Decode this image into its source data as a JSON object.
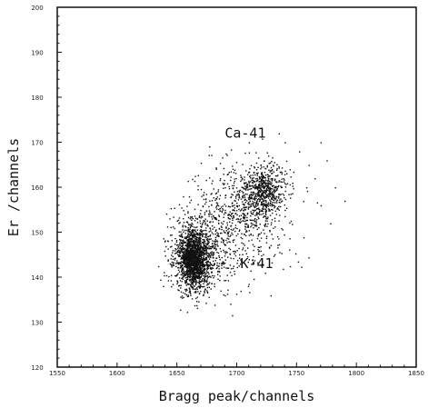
{
  "chart_data": {
    "type": "scatter",
    "title": "",
    "xlabel": "Bragg peak/channels",
    "ylabel": "Er /channels",
    "xlim": [
      1550,
      1850
    ],
    "ylim": [
      120,
      200
    ],
    "x_ticks": [
      "1550",
      "1600",
      "1650",
      "1700",
      "1750",
      "1800",
      "1850"
    ],
    "y_ticks": [
      "120",
      "130",
      "140",
      "150",
      "160",
      "170",
      "180",
      "190",
      "200"
    ],
    "x_tick_values": [
      1550,
      1600,
      1650,
      1700,
      1750,
      1800,
      1850
    ],
    "y_tick_values": [
      120,
      130,
      140,
      150,
      160,
      170,
      180,
      190,
      200
    ],
    "grid": false,
    "annotations": [
      {
        "text": "Ca-41",
        "x": 1690,
        "y": 171
      },
      {
        "text": "K-41",
        "x": 1703,
        "y": 142
      }
    ],
    "series": [
      {
        "clusters": [
          {
            "label": "K-41",
            "center": [
              1663,
              144
            ],
            "spread": [
              6,
              3
            ],
            "count": 1400
          },
          {
            "label": "K-41",
            "center": [
              1668,
              145
            ],
            "spread": [
              12,
              4.5
            ],
            "count": 700
          },
          {
            "label": "Ca-41",
            "center": [
              1722,
              159
            ],
            "spread": [
              9,
              3
            ],
            "count": 650
          },
          {
            "label": "Ca-41",
            "center": [
              1700,
              153
            ],
            "spread": [
              22,
              6
            ],
            "count": 650
          }
        ],
        "values": [
          [
            1645,
            138
          ],
          [
            1654,
            149
          ],
          [
            1690,
            150
          ],
          [
            1730,
            165
          ],
          [
            1752,
            168
          ],
          [
            1760,
            165
          ],
          [
            1770,
            170
          ],
          [
            1778,
            152
          ],
          [
            1782,
            160
          ],
          [
            1790,
            157
          ],
          [
            1770,
            156
          ],
          [
            1690,
            160
          ],
          [
            1740,
            155
          ],
          [
            1710,
            170
          ],
          [
            1695,
            142
          ],
          [
            1655,
            158
          ],
          [
            1660,
            158
          ],
          [
            1690,
            136
          ],
          [
            1680,
            140
          ],
          [
            1720,
            150
          ],
          [
            1775,
            166
          ],
          [
            1765,
            162
          ],
          [
            1758,
            160
          ],
          [
            1740,
            170
          ],
          [
            1735,
            172
          ]
        ]
      }
    ]
  }
}
